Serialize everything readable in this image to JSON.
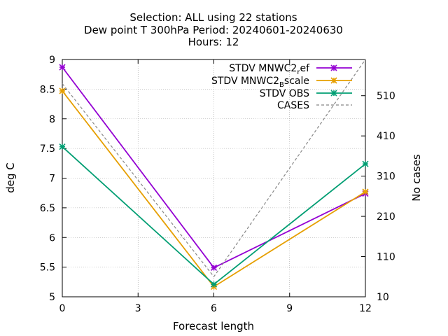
{
  "chart_data": {
    "type": "line",
    "title_lines": [
      "Selection: ALL using    22 stations",
      "Dew point T 300hPa   Period: 20240601-20240630",
      "Hours: 12"
    ],
    "xlabel": "Forecast length",
    "ylabel": "deg C",
    "y2label": "No cases",
    "xlim": [
      0,
      12
    ],
    "ylim": [
      5,
      9
    ],
    "y2lim": [
      10,
      600
    ],
    "xticks": [
      "0",
      "3",
      "6",
      "9",
      "12"
    ],
    "yticks": [
      "5",
      "5.5",
      "6",
      "6.5",
      "7",
      "7.5",
      "8",
      "8.5",
      "9"
    ],
    "y2ticks": [
      "10",
      "110",
      "210",
      "310",
      "410",
      "510"
    ],
    "grid": true,
    "legend_position": "top-right",
    "series": [
      {
        "name": "STDV MNWC2",
        "sub": "r",
        "suffix": "ef",
        "color": "#9400d3",
        "marker": "x-star",
        "dash": false,
        "axis": "y",
        "x": [
          0,
          6,
          12
        ],
        "values": [
          8.87,
          5.49,
          6.74
        ]
      },
      {
        "name": "STDV MNWC2",
        "sub": "B",
        "suffix": "scale",
        "color": "#e69f00",
        "marker": "x-star",
        "dash": false,
        "axis": "y",
        "x": [
          0,
          6,
          12
        ],
        "values": [
          8.47,
          5.17,
          6.77
        ]
      },
      {
        "name": "STDV OBS",
        "sub": "",
        "suffix": "",
        "color": "#009e73",
        "marker": "x-star",
        "dash": false,
        "axis": "y",
        "x": [
          0,
          6,
          12
        ],
        "values": [
          7.53,
          5.21,
          7.24
        ]
      },
      {
        "name": "CASES",
        "sub": "",
        "suffix": "",
        "color": "#888888",
        "marker": "none",
        "dash": true,
        "axis": "y2",
        "x": [
          0,
          6,
          12
        ],
        "values": [
          540,
          60,
          600
        ]
      }
    ]
  }
}
